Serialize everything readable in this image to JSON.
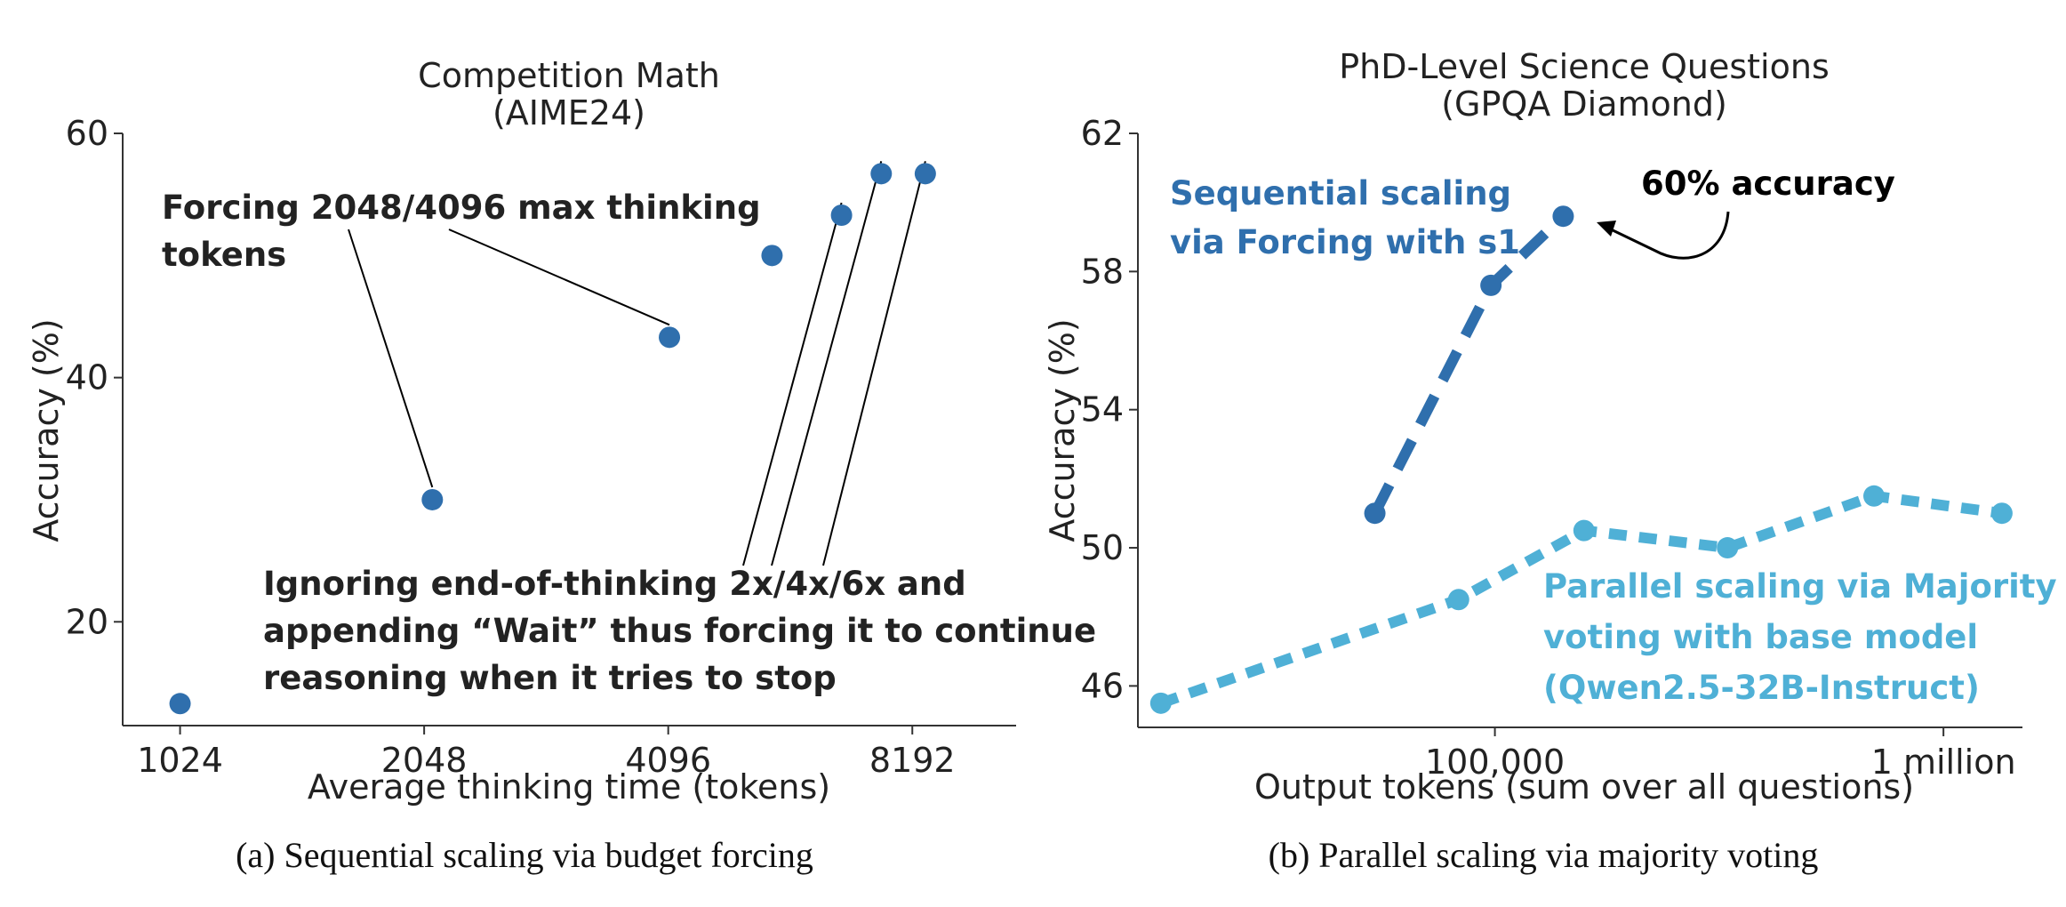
{
  "colors": {
    "points_a": "#2f6fad",
    "sequential": "#2f6fad",
    "parallel": "#4fb0d6",
    "axis": "#333333",
    "text": "#222222"
  },
  "chart_data": [
    {
      "type": "scatter",
      "title": "Competition Math",
      "subtitle": "(AIME24)",
      "xlabel": "Average thinking time (tokens)",
      "ylabel": "Accuracy (%)",
      "xscale": "log2",
      "xlim": [
        870,
        11000
      ],
      "ylim": [
        11.5,
        60
      ],
      "xticks": [
        1024,
        2048,
        4096,
        8192
      ],
      "xtick_labels": [
        "1024",
        "2048",
        "4096",
        "8192"
      ],
      "yticks": [
        20,
        40,
        60
      ],
      "ytick_labels": [
        "20",
        "40",
        "60"
      ],
      "points": [
        {
          "x": 1024,
          "y": 13.3
        },
        {
          "x": 2096,
          "y": 30.0
        },
        {
          "x": 4110,
          "y": 43.3
        },
        {
          "x": 5500,
          "y": 50.0
        },
        {
          "x": 6700,
          "y": 53.3
        },
        {
          "x": 7500,
          "y": 56.7
        },
        {
          "x": 8500,
          "y": 56.7
        }
      ],
      "annotations": [
        {
          "lines": [
            "Forcing 2048/4096 max thinking",
            "tokens"
          ],
          "targets": [
            1,
            2
          ]
        },
        {
          "lines": [
            "Ignoring end-of-thinking 2x/4x/6x and",
            "appending “Wait” thus forcing it to continue",
            "reasoning when it tries to stop"
          ],
          "targets": [
            4,
            5,
            6
          ]
        }
      ],
      "caption": "(a) Sequential scaling via budget forcing"
    },
    {
      "type": "line",
      "title": "PhD-Level Science Questions",
      "subtitle": "(GPQA Diamond)",
      "xlabel": "Output tokens (sum over all questions)",
      "ylabel": "Accuracy (%)",
      "xscale": "log10",
      "xlim": [
        16000,
        1500000
      ],
      "ylim": [
        44.8,
        62
      ],
      "xticks": [
        100000,
        1000000
      ],
      "xtick_labels": [
        "100,000",
        "1 million"
      ],
      "yticks": [
        46,
        50,
        54,
        58,
        62
      ],
      "ytick_labels": [
        "46",
        "50",
        "54",
        "58",
        "62"
      ],
      "series": [
        {
          "name": "Sequential scaling via Forcing with s1",
          "label_lines": [
            "Sequential scaling",
            "via Forcing with s1"
          ],
          "dash": "long",
          "points": [
            {
              "x": 54000,
              "y": 51.0
            },
            {
              "x": 98000,
              "y": 57.6
            },
            {
              "x": 142000,
              "y": 59.6
            }
          ]
        },
        {
          "name": "Parallel scaling via Majority voting with base model (Qwen2.5-32B-Instruct)",
          "label_lines": [
            "Parallel scaling via Majority",
            "voting with base model",
            "(Qwen2.5-32B-Instruct)"
          ],
          "dash": "short",
          "points": [
            {
              "x": 18000,
              "y": 45.5
            },
            {
              "x": 83000,
              "y": 48.5
            },
            {
              "x": 158000,
              "y": 50.5
            },
            {
              "x": 330000,
              "y": 50.0
            },
            {
              "x": 700000,
              "y": 51.5
            },
            {
              "x": 1350000,
              "y": 51.0
            }
          ]
        }
      ],
      "callout": {
        "text": "60% accuracy",
        "target": {
          "series": 0,
          "point": 2
        }
      },
      "caption": "(b) Parallel scaling via majority voting"
    }
  ]
}
